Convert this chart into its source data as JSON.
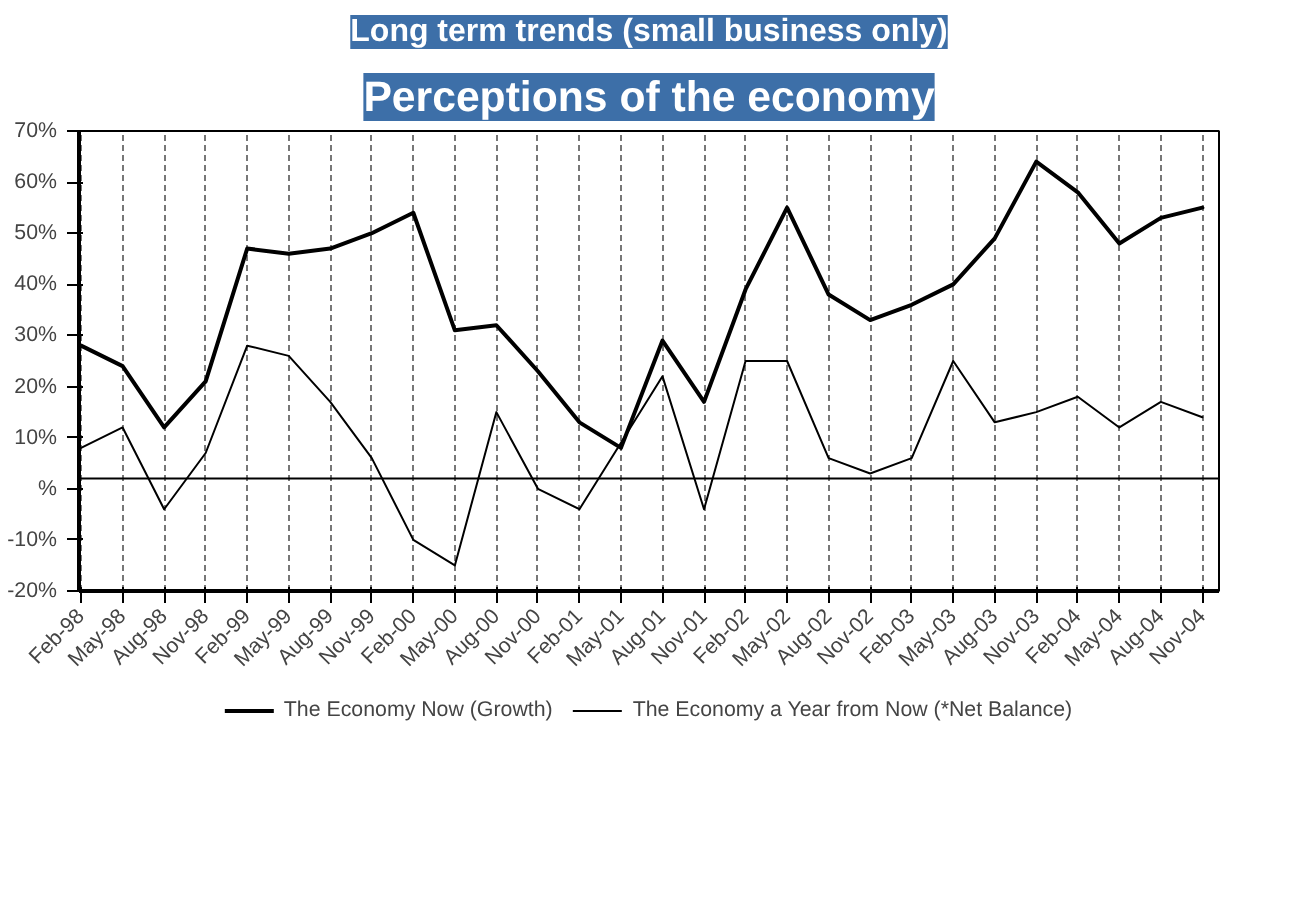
{
  "chart_data": {
    "type": "line",
    "title": "Perceptions of the economy",
    "subtitle": "Long term trends (small business only)",
    "categories": [
      "Feb-98",
      "May-98",
      "Aug-98",
      "Nov-98",
      "Feb-99",
      "May-99",
      "Aug-99",
      "Nov-99",
      "Feb-00",
      "May-00",
      "Aug-00",
      "Nov-00",
      "Feb-01",
      "May-01",
      "Aug-01",
      "Nov-01",
      "Feb-02",
      "May-02",
      "Aug-02",
      "Nov-02",
      "Feb-03",
      "May-03",
      "Aug-03",
      "Nov-03",
      "Feb-04",
      "May-04",
      "Aug-04",
      "Nov-04"
    ],
    "series": [
      {
        "name": "The Economy Now (Growth)",
        "color": "#000000",
        "values": [
          28,
          24,
          12,
          21,
          47,
          46,
          47,
          50,
          54,
          31,
          32,
          23,
          13,
          8,
          29,
          17,
          39,
          55,
          38,
          33,
          36,
          40,
          49,
          64,
          58,
          48,
          53,
          55
        ]
      },
      {
        "name": "The Economy a Year from Now (*Net Balance)",
        "color": "#000000",
        "values": [
          8,
          12,
          -4,
          7,
          28,
          26,
          17,
          6,
          -10,
          -15,
          15,
          0,
          -4,
          9,
          22,
          -4,
          25,
          25,
          6,
          3,
          6,
          25,
          13,
          15,
          18,
          12,
          17,
          14
        ]
      }
    ],
    "ylim": [
      -20,
      70
    ],
    "yticks": [
      {
        "value": -20,
        "label": "-20%"
      },
      {
        "value": -10,
        "label": "-10%"
      },
      {
        "value": 0,
        "label": "%"
      },
      {
        "value": 10,
        "label": "10%"
      },
      {
        "value": 20,
        "label": "20%"
      },
      {
        "value": 30,
        "label": "30%"
      },
      {
        "value": 40,
        "label": "40%"
      },
      {
        "value": 50,
        "label": "50%"
      },
      {
        "value": 60,
        "label": "60%"
      },
      {
        "value": 70,
        "label": "70%"
      }
    ],
    "ref_lines": [
      {
        "axis": "y",
        "value": 2,
        "label": null,
        "color": "#000000"
      }
    ],
    "grid": "x",
    "legend": "bottom",
    "marker": "none",
    "line_style": "solid"
  }
}
